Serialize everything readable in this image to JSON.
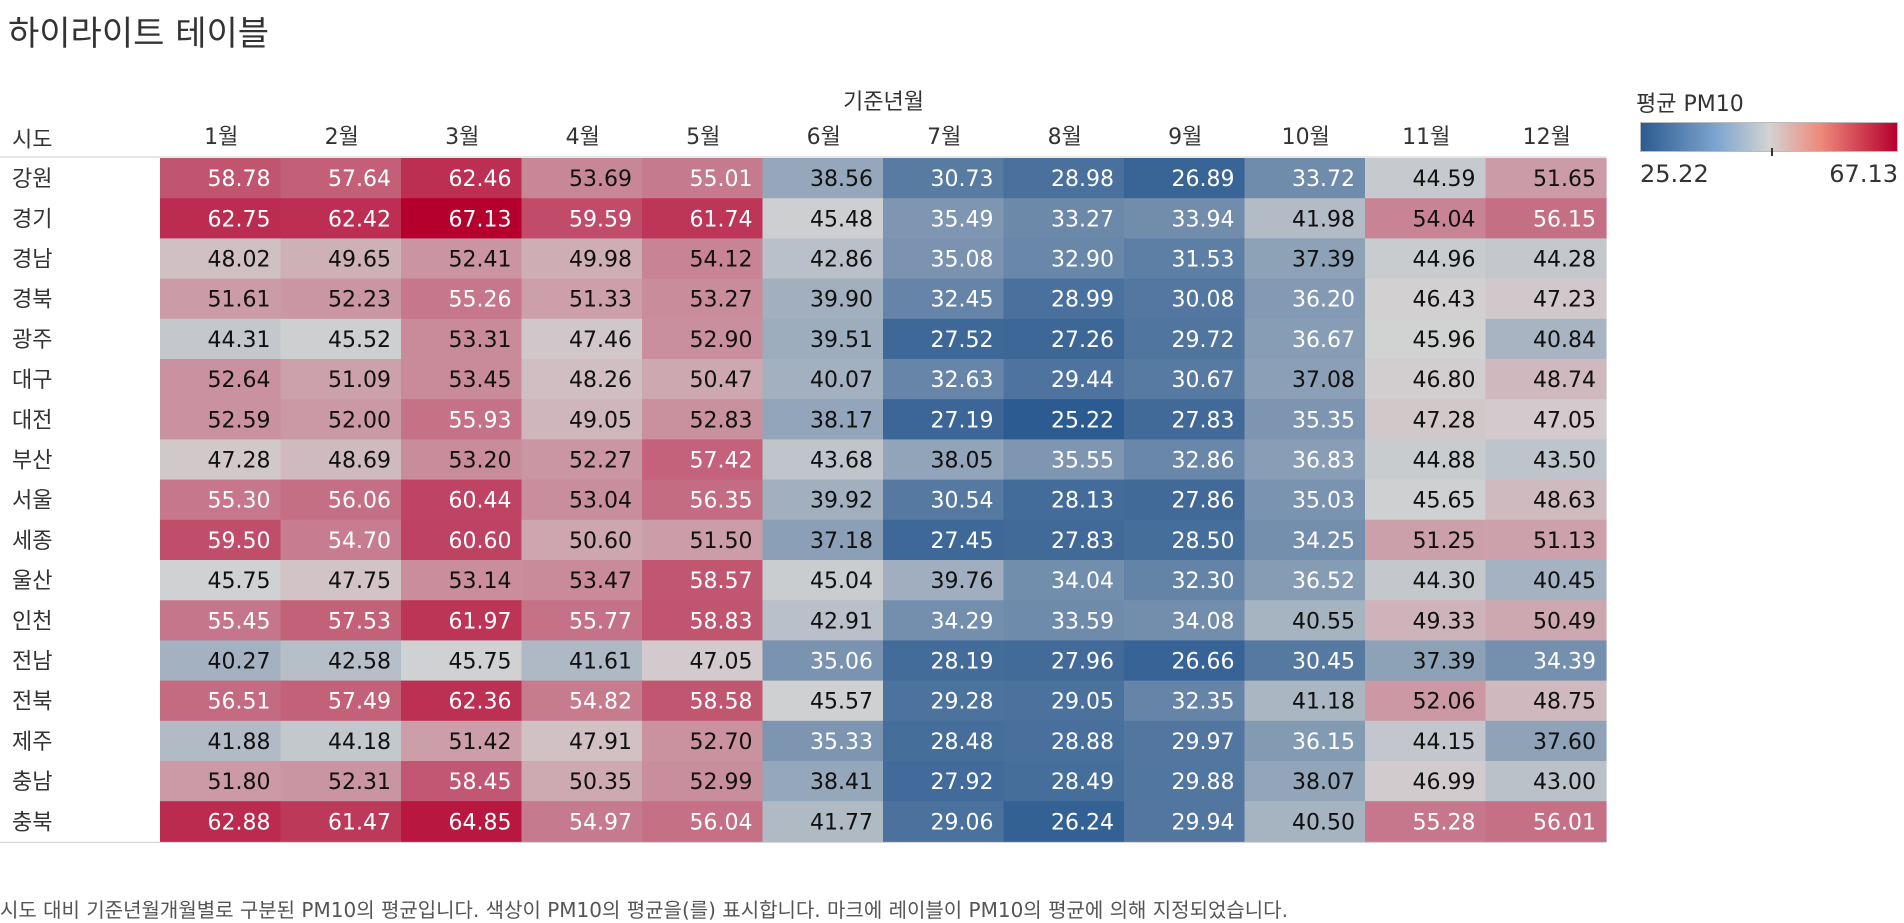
{
  "title": "하이라이트 테이블",
  "caption": "시도 대비 기준년월개월별로 구분된 PM10의 평균입니다.  색상이 PM10의 평균을(를) 표시합니다.  마크에 레이블이 PM10의 평균에 의해 지정되었습니다.",
  "colors": {
    "low": "#2c5b91",
    "mid": "#d3d3d3",
    "high": "#b5002d"
  },
  "chart_data": {
    "type": "heatmap",
    "column_group_label": "기준년월",
    "row_header_label": "시도",
    "columns": [
      "1월",
      "2월",
      "3월",
      "4월",
      "5월",
      "6월",
      "7월",
      "8월",
      "9월",
      "10월",
      "11월",
      "12월"
    ],
    "rows": [
      "강원",
      "경기",
      "경남",
      "경북",
      "광주",
      "대구",
      "대전",
      "부산",
      "서울",
      "세종",
      "울산",
      "인천",
      "전남",
      "전북",
      "제주",
      "충남",
      "충북"
    ],
    "values": [
      [
        58.78,
        57.64,
        62.46,
        53.69,
        55.01,
        38.56,
        30.73,
        28.98,
        26.89,
        33.72,
        44.59,
        51.65
      ],
      [
        62.75,
        62.42,
        67.13,
        59.59,
        61.74,
        45.48,
        35.49,
        33.27,
        33.94,
        41.98,
        54.04,
        56.15
      ],
      [
        48.02,
        49.65,
        52.41,
        49.98,
        54.12,
        42.86,
        35.08,
        32.9,
        31.53,
        37.39,
        44.96,
        44.28
      ],
      [
        51.61,
        52.23,
        55.26,
        51.33,
        53.27,
        39.9,
        32.45,
        28.99,
        30.08,
        36.2,
        46.43,
        47.23
      ],
      [
        44.31,
        45.52,
        53.31,
        47.46,
        52.9,
        39.51,
        27.52,
        27.26,
        29.72,
        36.67,
        45.96,
        40.84
      ],
      [
        52.64,
        51.09,
        53.45,
        48.26,
        50.47,
        40.07,
        32.63,
        29.44,
        30.67,
        37.08,
        46.8,
        48.74
      ],
      [
        52.59,
        52.0,
        55.93,
        49.05,
        52.83,
        38.17,
        27.19,
        25.22,
        27.83,
        35.35,
        47.28,
        47.05
      ],
      [
        47.28,
        48.69,
        53.2,
        52.27,
        57.42,
        43.68,
        38.05,
        35.55,
        32.86,
        36.83,
        44.88,
        43.5
      ],
      [
        55.3,
        56.06,
        60.44,
        53.04,
        56.35,
        39.92,
        30.54,
        28.13,
        27.86,
        35.03,
        45.65,
        48.63
      ],
      [
        59.5,
        54.7,
        60.6,
        50.6,
        51.5,
        37.18,
        27.45,
        27.83,
        28.5,
        34.25,
        51.25,
        51.13
      ],
      [
        45.75,
        47.75,
        53.14,
        53.47,
        58.57,
        45.04,
        39.76,
        34.04,
        32.3,
        36.52,
        44.3,
        40.45
      ],
      [
        55.45,
        57.53,
        61.97,
        55.77,
        58.83,
        42.91,
        34.29,
        33.59,
        34.08,
        40.55,
        49.33,
        50.49
      ],
      [
        40.27,
        42.58,
        45.75,
        41.61,
        47.05,
        35.06,
        28.19,
        27.96,
        26.66,
        30.45,
        37.39,
        34.39
      ],
      [
        56.51,
        57.49,
        62.36,
        54.82,
        58.58,
        45.57,
        29.28,
        29.05,
        32.35,
        41.18,
        52.06,
        48.75
      ],
      [
        41.88,
        44.18,
        51.42,
        47.91,
        52.7,
        35.33,
        28.48,
        28.88,
        29.97,
        36.15,
        44.15,
        37.6
      ],
      [
        51.8,
        52.31,
        58.45,
        50.35,
        52.99,
        38.41,
        27.92,
        28.49,
        29.88,
        38.07,
        46.99,
        43.0
      ],
      [
        62.88,
        61.47,
        64.85,
        54.97,
        56.04,
        41.77,
        29.06,
        26.24,
        29.94,
        40.5,
        55.28,
        56.01
      ]
    ],
    "legend": {
      "title": "평균 PM10",
      "min_label": "25.22",
      "max_label": "67.13",
      "min": 25.22,
      "max": 67.13,
      "center": 46.17
    },
    "value_decimals": 2
  }
}
